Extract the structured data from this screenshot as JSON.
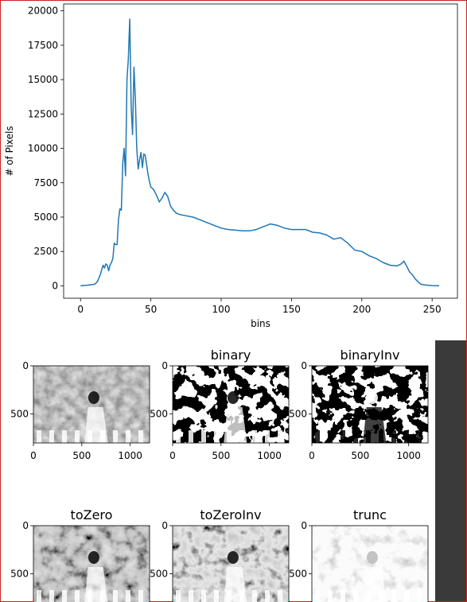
{
  "chart_data": [
    {
      "type": "line",
      "title": "",
      "xlabel": "bins",
      "ylabel": "# of Pixels",
      "xlim": [
        -12,
        268
      ],
      "ylim": [
        -900,
        20500
      ],
      "xticks": [
        0,
        50,
        100,
        150,
        200,
        250
      ],
      "yticks": [
        0,
        2500,
        5000,
        7500,
        10000,
        12500,
        15000,
        17500,
        20000
      ],
      "grid": false,
      "series": [
        {
          "color": "#1f77b4",
          "x": [
            0,
            5,
            10,
            12,
            14,
            16,
            17,
            18,
            19,
            20,
            21,
            22,
            23,
            24,
            25,
            26,
            27,
            28,
            29,
            30,
            31,
            32,
            33,
            34,
            35,
            36,
            37,
            38,
            39,
            40,
            41,
            42,
            43,
            44,
            45,
            46,
            47,
            48,
            49,
            50,
            52,
            54,
            56,
            58,
            60,
            62,
            64,
            66,
            68,
            70,
            75,
            80,
            85,
            90,
            95,
            100,
            105,
            110,
            115,
            120,
            125,
            130,
            135,
            140,
            145,
            150,
            155,
            160,
            165,
            170,
            175,
            180,
            185,
            190,
            195,
            200,
            205,
            210,
            215,
            220,
            225,
            228,
            230,
            232,
            234,
            236,
            238,
            240,
            242,
            245,
            250,
            255
          ],
          "y": [
            0,
            50,
            120,
            300,
            800,
            1500,
            1300,
            1600,
            1500,
            1100,
            1500,
            1700,
            2000,
            3100,
            3000,
            3000,
            4800,
            5600,
            5500,
            8900,
            10000,
            8000,
            15000,
            16500,
            19400,
            13000,
            11000,
            15900,
            13500,
            10000,
            8500,
            9200,
            9700,
            8600,
            9600,
            9500,
            8800,
            8100,
            7600,
            7200,
            7000,
            6600,
            6100,
            6400,
            6800,
            6500,
            5800,
            5500,
            5300,
            5200,
            5100,
            5000,
            4800,
            4600,
            4400,
            4200,
            4100,
            4050,
            4000,
            4000,
            4100,
            4300,
            4500,
            4400,
            4200,
            4100,
            4100,
            4100,
            3900,
            3850,
            3700,
            3400,
            3500,
            3100,
            2600,
            2500,
            2200,
            2000,
            1700,
            1500,
            1450,
            1600,
            1800,
            1400,
            1000,
            800,
            500,
            300,
            120,
            60,
            20,
            0
          ]
        }
      ]
    },
    {
      "type": "image",
      "title": "",
      "xticks": [
        0,
        500,
        1000
      ],
      "yticks": [
        0,
        500
      ],
      "image": "grayscale"
    },
    {
      "type": "image",
      "title": "binary",
      "xticks": [
        0,
        500,
        1000
      ],
      "yticks": [
        0,
        500
      ],
      "image": "binary"
    },
    {
      "type": "image",
      "title": "binaryInv",
      "xticks": [
        0,
        500,
        1000
      ],
      "yticks": [
        0,
        500
      ],
      "image": "binary-inverted"
    },
    {
      "type": "image",
      "title": "toZero",
      "yticks": [
        0,
        500
      ],
      "image": "to-zero"
    },
    {
      "type": "image",
      "title": "toZeroInv",
      "yticks": [
        0,
        500
      ],
      "image": "to-zero-inverted"
    },
    {
      "type": "image",
      "title": "trunc",
      "yticks": [
        0,
        500
      ],
      "image": "truncated"
    }
  ],
  "colors": {
    "line": "#1f77b4",
    "frame_border": "#cc2020",
    "sidebar": "#3a3a3a"
  }
}
